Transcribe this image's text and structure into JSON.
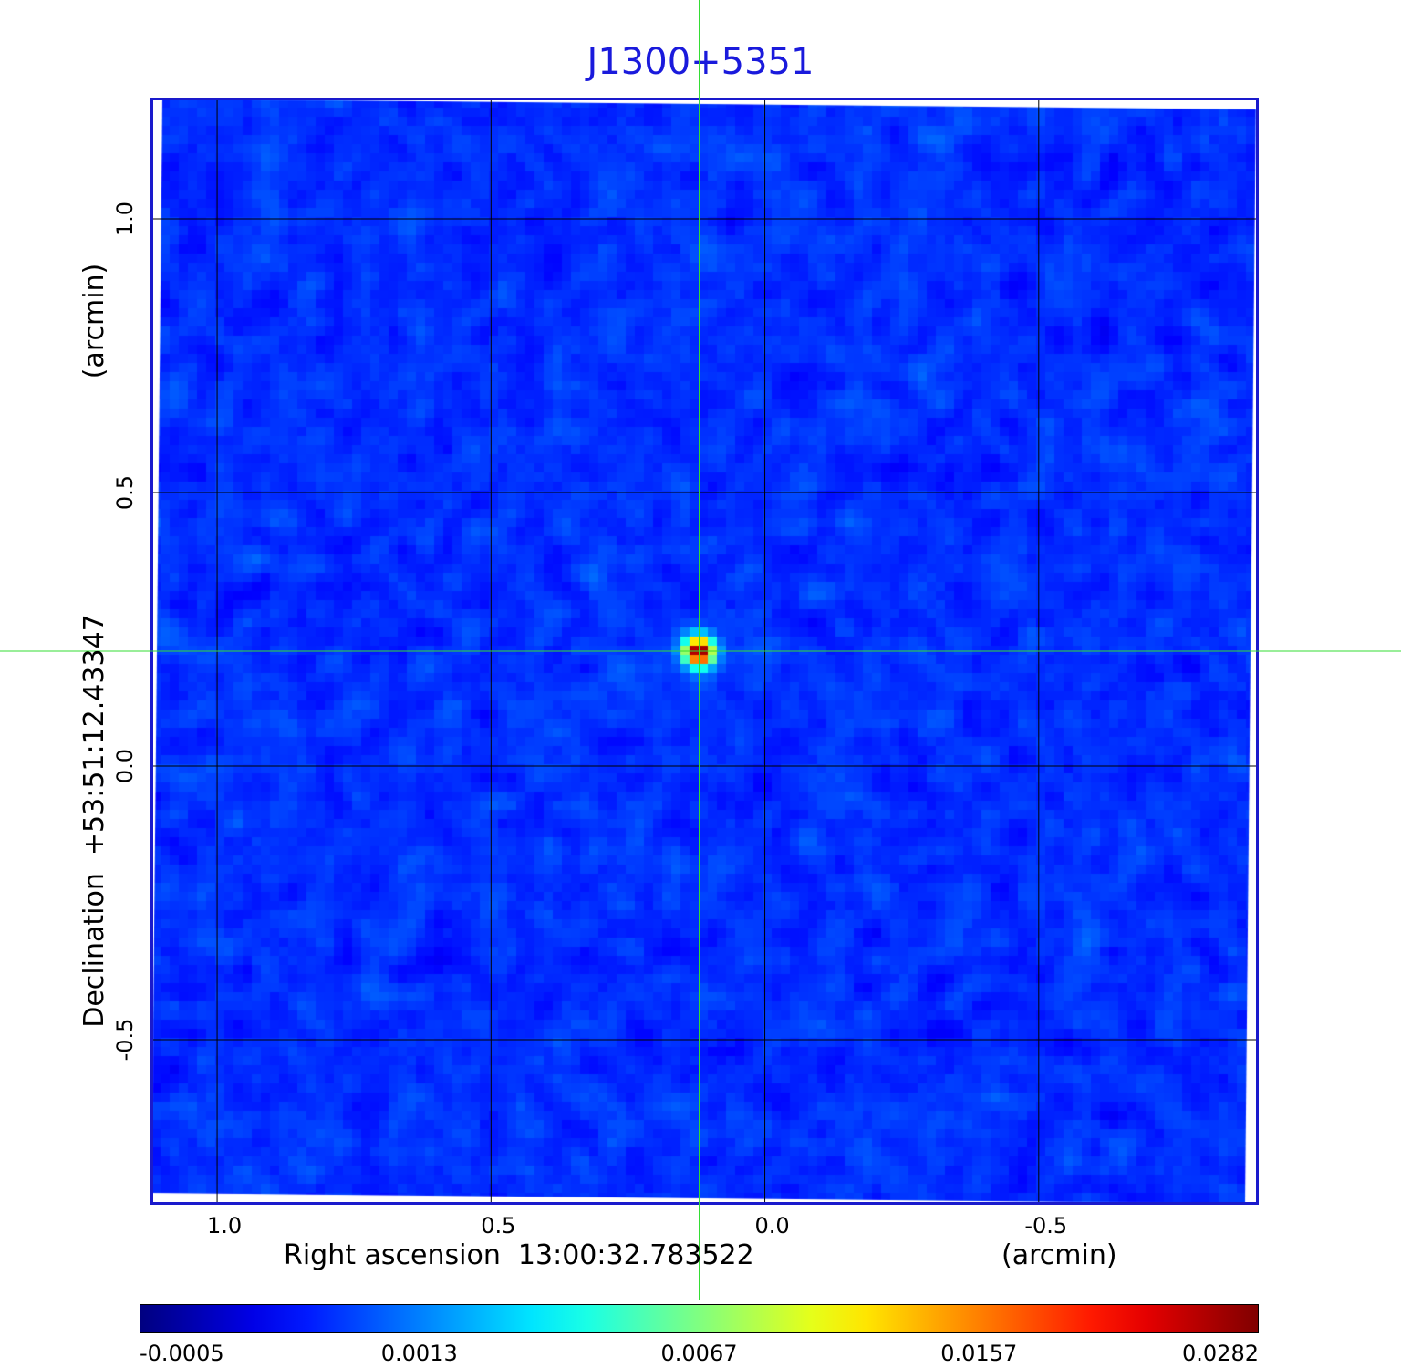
{
  "chart_data": {
    "type": "heatmap",
    "title": "J1300+5351",
    "xlabel": "Right ascension  13:00:32.783522",
    "xunit": "(arcmin)",
    "ylabel": "Declination  +53:51:12.43347",
    "yunit": "(arcmin)",
    "x_ticks": [
      "1.0",
      "0.5",
      "0.0",
      "-0.5"
    ],
    "y_ticks": [
      "1.0",
      "0.5",
      "0.0",
      "-0.5"
    ],
    "xlim": [
      1.12,
      -0.9
    ],
    "ylim": [
      -0.8,
      1.22
    ],
    "grid": true,
    "source_peak": {
      "x": 0.12,
      "y": 0.21,
      "value": 0.0282
    },
    "crosshair": {
      "x": 0.12,
      "y": 0.21
    },
    "colorbar": {
      "ticks": [
        "-0.0005",
        "0.0013",
        "0.0067",
        "0.0157",
        "0.0282"
      ],
      "colormap": "jet",
      "placement": "bottom"
    }
  },
  "colors": {
    "title": "#1a1adc",
    "frame": "#1a1acc",
    "crosshair": "#33dd33",
    "grid": "#000000"
  }
}
